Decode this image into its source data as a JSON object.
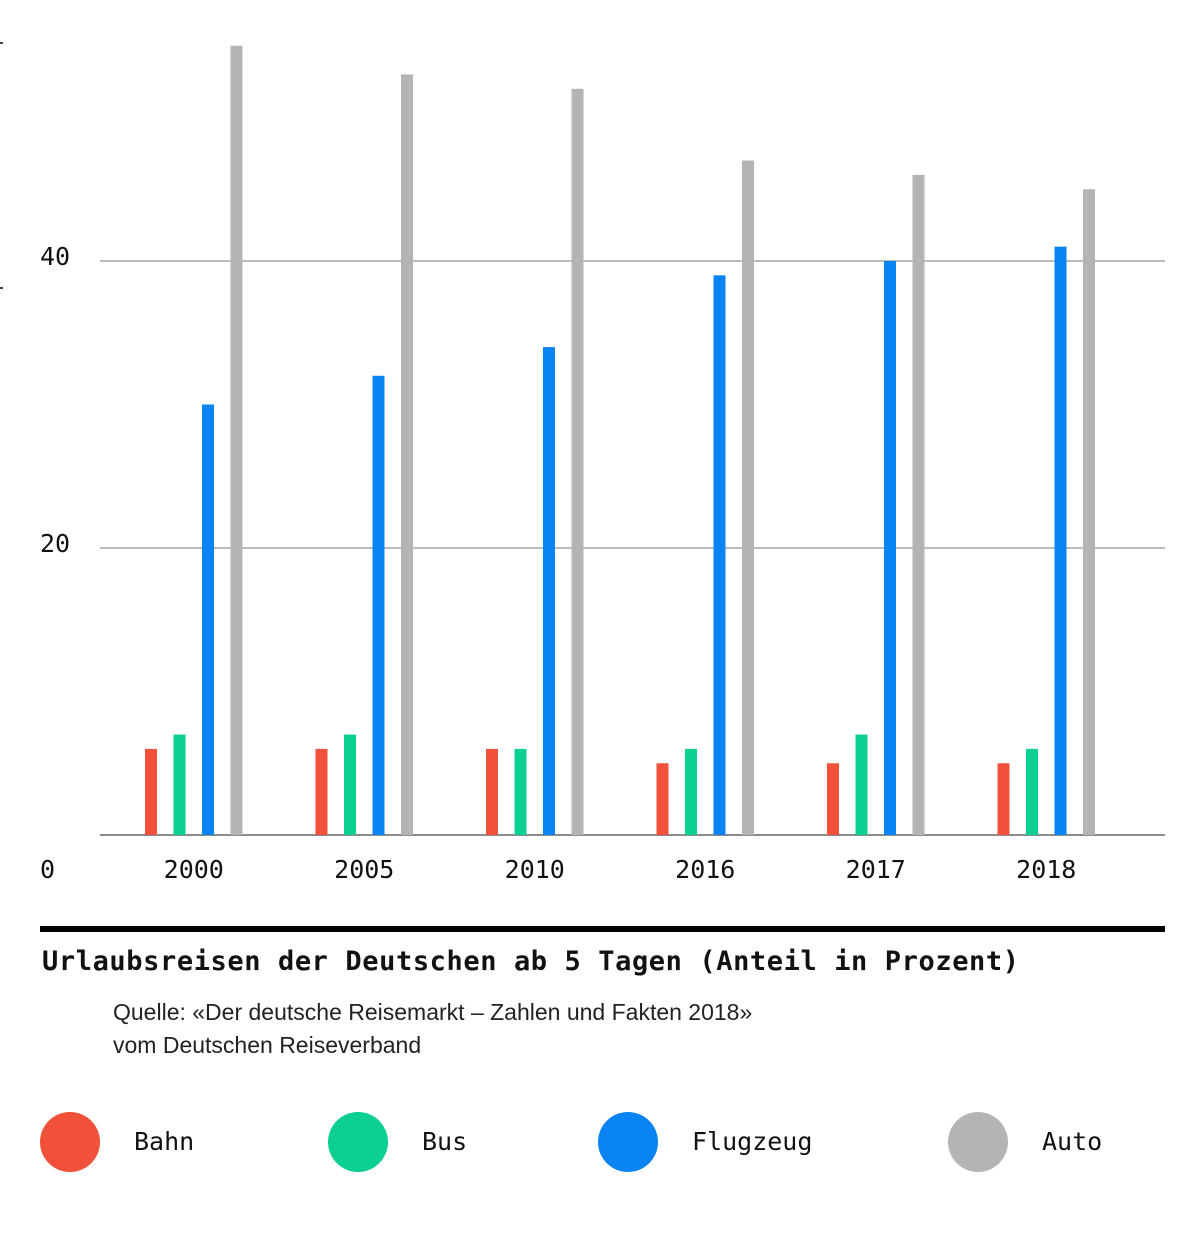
{
  "chart_data": {
    "type": "bar",
    "title": "Urlaubsreisen der Deutschen ab 5 Tagen (Anteil in Prozent)",
    "source_lines": [
      "Quelle: «Der deutsche Reisemarkt – Zahlen und Fakten 2018»",
      "vom Deutschen Reiseverband"
    ],
    "categories": [
      "2000",
      "2005",
      "2010",
      "2016",
      "2017",
      "2018"
    ],
    "series": [
      {
        "name": "Bahn",
        "color": "#f1503a",
        "values": [
          6,
          6,
          6,
          5,
          5,
          5
        ]
      },
      {
        "name": "Bus",
        "color": "#0ccf92",
        "values": [
          7,
          7,
          6,
          6,
          7,
          6
        ]
      },
      {
        "name": "Flugzeug",
        "color": "#0a84f2",
        "values": [
          30,
          32,
          34,
          39,
          40,
          41
        ]
      },
      {
        "name": "Auto",
        "color": "#b4b4b4",
        "values": [
          55,
          53,
          52,
          47,
          46,
          45
        ]
      }
    ],
    "y_ticks": [
      "0",
      "20",
      "40"
    ],
    "ylim": [
      0,
      55
    ],
    "grid": true,
    "legend_position": "bottom"
  }
}
